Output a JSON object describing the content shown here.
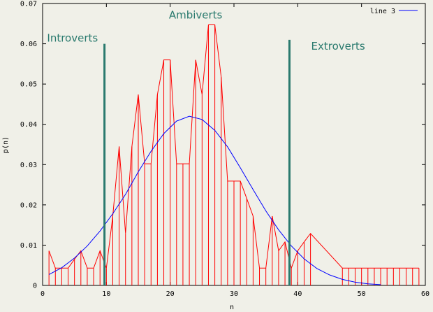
{
  "chart_data": {
    "type": "line",
    "xlabel": "n",
    "ylabel": "p(n)",
    "xlim": [
      0,
      60
    ],
    "ylim": [
      0,
      0.07
    ],
    "x_ticks": [
      "0",
      "10",
      "20",
      "30",
      "40",
      "50",
      "60"
    ],
    "y_ticks": [
      "0",
      "0.01",
      "0.02",
      "0.03",
      "0.04",
      "0.05",
      "0.06",
      "0.07"
    ],
    "grid": false,
    "legend_placement": "top-right",
    "colors": {
      "histogram": "#ff0000",
      "fit": "#0000ff",
      "markers": "#2a7a6e",
      "background": "#f0f0e8"
    },
    "series": [
      {
        "kind": "impulses",
        "color": "#ff0000",
        "x": [
          1,
          2,
          3,
          4,
          5,
          6,
          7,
          8,
          9,
          10,
          11,
          12,
          13,
          14,
          15,
          16,
          17,
          18,
          19,
          20,
          21,
          22,
          23,
          24,
          25,
          26,
          27,
          28,
          29,
          30,
          31,
          32,
          33,
          34,
          35,
          36,
          37,
          38,
          39,
          40,
          41,
          42,
          47,
          48,
          49,
          50,
          51,
          52,
          53,
          54,
          55,
          56,
          57,
          58,
          59
        ],
        "y": [
          0.0086,
          0.0043,
          0.0043,
          0.0043,
          0.0065,
          0.0086,
          0.0043,
          0.0043,
          0.0086,
          0.0043,
          0.0172,
          0.0345,
          0.0129,
          0.0345,
          0.0474,
          0.0302,
          0.0302,
          0.0474,
          0.056,
          0.056,
          0.0302,
          0.0302,
          0.0302,
          0.056,
          0.0474,
          0.0647,
          0.0647,
          0.0517,
          0.0259,
          0.0259,
          0.0259,
          0.0216,
          0.0172,
          0.0043,
          0.0043,
          0.0172,
          0.0086,
          0.0108,
          0.0043,
          0.0086,
          0.0108,
          0.0129,
          0.0043,
          0.0043,
          0.0043,
          0.0043,
          0.0043,
          0.0043,
          0.0043,
          0.0043,
          0.0043,
          0.0043,
          0.0043,
          0.0043,
          0.0043
        ]
      },
      {
        "name": "line 3",
        "kind": "line",
        "color": "#0000ff",
        "x": [
          1,
          3,
          5,
          7,
          9,
          11,
          13,
          15,
          17,
          19,
          21,
          23,
          25,
          27,
          29,
          31,
          33,
          35,
          37,
          39,
          41,
          43,
          45,
          47,
          49,
          51,
          53
        ],
        "y": [
          0.0027,
          0.0044,
          0.0068,
          0.0098,
          0.0135,
          0.0178,
          0.0226,
          0.0282,
          0.0333,
          0.0377,
          0.0408,
          0.042,
          0.0412,
          0.0385,
          0.0344,
          0.0292,
          0.0238,
          0.0185,
          0.0138,
          0.0098,
          0.0066,
          0.0042,
          0.0026,
          0.0015,
          0.0008,
          0.0004,
          0.0002
        ]
      }
    ],
    "vertical_markers": [
      {
        "x": 9.7,
        "y_top": 0.06,
        "color": "#2a7a6e"
      },
      {
        "x": 38.7,
        "y_top": 0.061,
        "color": "#2a7a6e"
      }
    ],
    "annotations": [
      {
        "text": "Introverts",
        "x": 0.7,
        "y": 0.0605,
        "color": "#2a7a6e"
      },
      {
        "text": "Ambiverts",
        "x": 19.8,
        "y": 0.0663,
        "color": "#2a7a6e"
      },
      {
        "text": "Extroverts",
        "x": 42.1,
        "y": 0.0585,
        "color": "#2a7a6e"
      }
    ]
  }
}
